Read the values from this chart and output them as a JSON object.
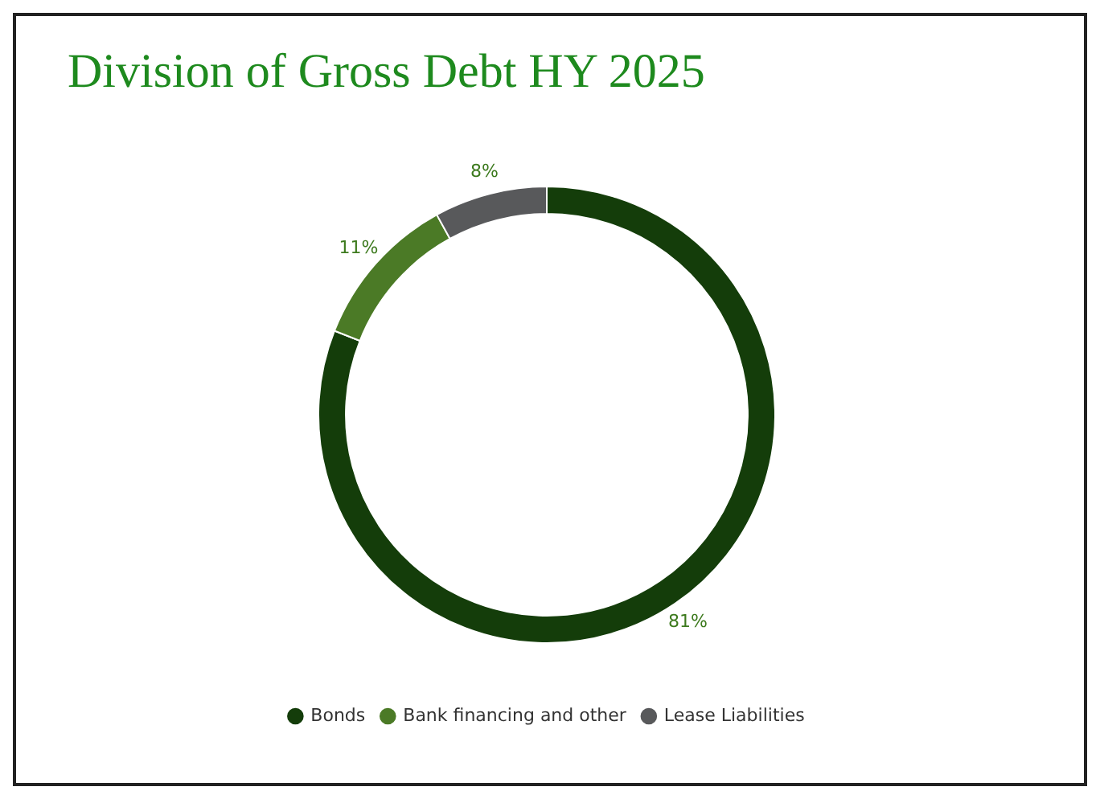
{
  "chart_data": {
    "type": "donut",
    "title": "Division of Gross Debt HY 2025",
    "categories": [
      "Bonds",
      "Bank financing and other",
      "Lease Liabilities"
    ],
    "values": [
      81,
      11,
      8
    ],
    "colors": [
      "#143d0a",
      "#4b7a26",
      "#58595b"
    ],
    "value_labels": [
      "81%",
      "11%",
      "8%"
    ],
    "legend": "bottom"
  }
}
